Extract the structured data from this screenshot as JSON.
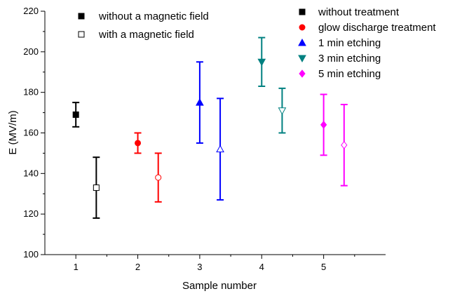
{
  "chart_data": {
    "type": "scatter",
    "title": "",
    "xlabel": "Sample number",
    "ylabel": "E (MV/m)",
    "xlim": [
      0.5,
      6.0
    ],
    "ylim": [
      100,
      220
    ],
    "x_ticks": [
      1,
      2,
      3,
      4,
      5
    ],
    "y_ticks": [
      100,
      120,
      140,
      160,
      180,
      200,
      220
    ],
    "grid": false,
    "error_bars": true,
    "groups": [
      {
        "name": "without treatment",
        "color": "#000000",
        "marker": "square",
        "without_field": {
          "x": 1.0,
          "y": 169,
          "err_low": 163,
          "err_high": 175
        },
        "with_field": {
          "x": 1.33,
          "y": 133,
          "err_low": 118,
          "err_high": 148
        }
      },
      {
        "name": "glow discharge treatment",
        "color": "#ff0000",
        "marker": "circle",
        "without_field": {
          "x": 2.0,
          "y": 155,
          "err_low": 150,
          "err_high": 160
        },
        "with_field": {
          "x": 2.33,
          "y": 138,
          "err_low": 126,
          "err_high": 150
        }
      },
      {
        "name": "1 min etching",
        "color": "#0000ff",
        "marker": "triangle-up",
        "without_field": {
          "x": 3.0,
          "y": 175,
          "err_low": 155,
          "err_high": 195
        },
        "with_field": {
          "x": 3.33,
          "y": 152,
          "err_low": 127,
          "err_high": 177
        }
      },
      {
        "name": "3 min etching",
        "color": "#008080",
        "marker": "triangle-down",
        "without_field": {
          "x": 4.0,
          "y": 195,
          "err_low": 183,
          "err_high": 207
        },
        "with_field": {
          "x": 4.33,
          "y": 171,
          "err_low": 160,
          "err_high": 182
        }
      },
      {
        "name": "5 min etching",
        "color": "#ff00ff",
        "marker": "diamond",
        "without_field": {
          "x": 5.0,
          "y": 164,
          "err_low": 149,
          "err_high": 179
        },
        "with_field": {
          "x": 5.33,
          "y": 154,
          "err_low": 134,
          "err_high": 174
        }
      }
    ],
    "legend_field": [
      {
        "label": "without a magnetic field",
        "filled": true
      },
      {
        "label": "with a magnetic field",
        "filled": false
      }
    ],
    "legend_location": "top"
  }
}
